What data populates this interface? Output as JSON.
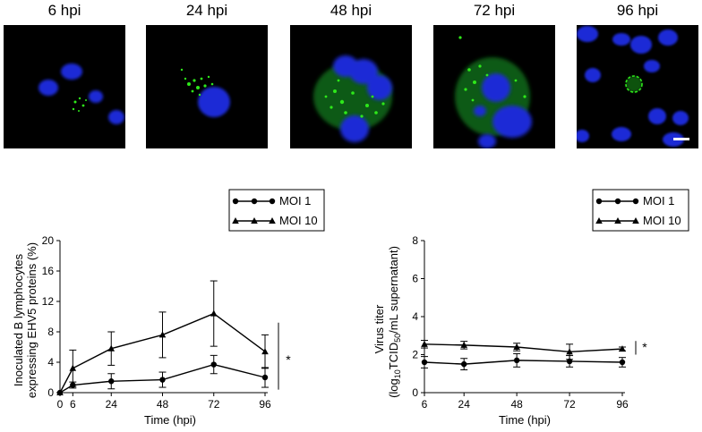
{
  "panels": [
    {
      "label": "6 hpi"
    },
    {
      "label": "24 hpi"
    },
    {
      "label": "48 hpi"
    },
    {
      "label": "72 hpi"
    },
    {
      "label": "96 hpi"
    }
  ],
  "colors": {
    "nuclei": "#1a2bd6",
    "signal": "#2ee81a",
    "background": "#000000",
    "scale_bar": "#ffffff"
  },
  "chart_data": [
    {
      "type": "line",
      "xlabel": "Time (hpi)",
      "ylabel": "Inoculated B lymphocytes expressing EHV5 proteins (%)",
      "ylabel_lines": [
        "Inoculated B lymphocytes",
        "expressing EHV5 proteins (%)"
      ],
      "x_ticks": [
        0,
        6,
        24,
        48,
        72,
        96
      ],
      "y_ticks": [
        0,
        4,
        8,
        12,
        16,
        20
      ],
      "xlim": [
        0,
        96
      ],
      "ylim": [
        0,
        20
      ],
      "legend": [
        "MOI 1",
        "MOI 10"
      ],
      "legend_position": "top-right",
      "significance": "*",
      "series": [
        {
          "name": "MOI 1",
          "marker": "circle",
          "x": [
            0,
            6,
            24,
            48,
            72,
            96
          ],
          "y": [
            0,
            1.0,
            1.5,
            1.7,
            3.7,
            2.0
          ],
          "err": [
            0,
            0.4,
            1.0,
            1.0,
            1.2,
            1.3
          ]
        },
        {
          "name": "MOI 10",
          "marker": "triangle",
          "x": [
            0,
            6,
            24,
            48,
            72,
            96
          ],
          "y": [
            0,
            3.2,
            5.8,
            7.6,
            10.4,
            5.4
          ],
          "err": [
            0,
            2.4,
            2.2,
            3.0,
            4.3,
            2.2
          ]
        }
      ]
    },
    {
      "type": "line",
      "xlabel": "Time (hpi)",
      "ylabel": "Virus titer (log10TCID50/mL supernatant)",
      "ylabel_line1": "Virus titer",
      "ylabel_parts": {
        "open": "(log",
        "sub1": "10",
        "mid": "TCID",
        "sub2": "50",
        "close": "/mL supernatant)"
      },
      "x_ticks": [
        6,
        24,
        48,
        72,
        96
      ],
      "y_ticks": [
        0,
        2,
        4,
        6,
        8
      ],
      "xlim": [
        6,
        96
      ],
      "ylim": [
        0,
        8
      ],
      "legend": [
        "MOI 1",
        "MOI 10"
      ],
      "legend_position": "top-right",
      "significance": "*",
      "series": [
        {
          "name": "MOI 1",
          "marker": "circle",
          "x": [
            6,
            24,
            48,
            72,
            96
          ],
          "y": [
            1.6,
            1.5,
            1.7,
            1.65,
            1.6
          ],
          "err": [
            0.3,
            0.3,
            0.35,
            0.3,
            0.25
          ]
        },
        {
          "name": "MOI 10",
          "marker": "triangle",
          "x": [
            6,
            24,
            48,
            72,
            96
          ],
          "y": [
            2.55,
            2.5,
            2.4,
            2.15,
            2.3
          ],
          "err": [
            0.2,
            0.2,
            0.2,
            0.4,
            0.1
          ]
        }
      ]
    }
  ]
}
